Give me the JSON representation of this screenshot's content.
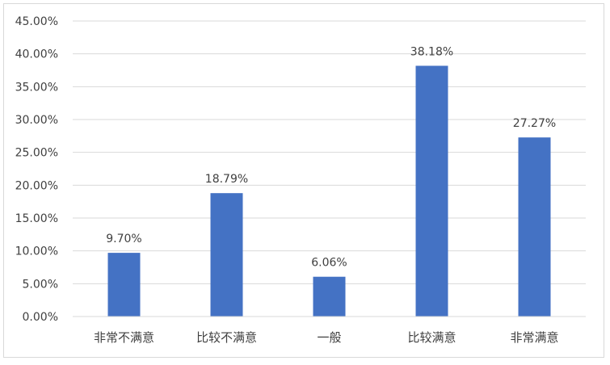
{
  "chart_data": {
    "type": "bar",
    "title": "",
    "xlabel": "",
    "ylabel": "",
    "categories": [
      "非常不满意",
      "比较不满意",
      "一般",
      "比较满意",
      "非常满意"
    ],
    "values": [
      9.7,
      18.79,
      6.06,
      38.18,
      27.27
    ],
    "data_labels": [
      "9.70%",
      "18.79%",
      "6.06%",
      "38.18%",
      "27.27%"
    ],
    "ylim": [
      0,
      45
    ],
    "y_ticks": [
      0,
      5,
      10,
      15,
      20,
      25,
      30,
      35,
      40,
      45
    ],
    "y_tick_labels": [
      "0.00%",
      "5.00%",
      "10.00%",
      "15.00%",
      "20.00%",
      "25.00%",
      "30.00%",
      "35.00%",
      "40.00%",
      "45.00%"
    ],
    "grid": true,
    "legend": "none",
    "colors": {
      "bar": "#4472C4",
      "grid": "#d9d9d9",
      "text": "#404040"
    }
  }
}
